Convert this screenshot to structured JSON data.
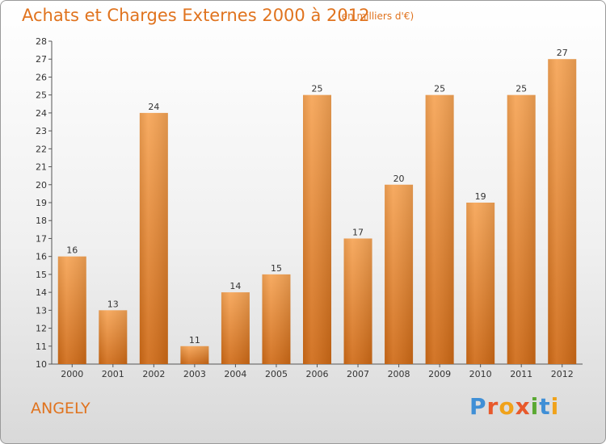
{
  "title": "Achats et Charges Externes 2000 à 2012",
  "unit_note": "(en milliers d'€)",
  "commune": "ANGELY",
  "logo": {
    "letters": [
      "P",
      "r",
      "o",
      "x",
      "i",
      "t",
      "i"
    ],
    "colors": [
      "#3f8fd6",
      "#e8592b",
      "#f0a21a",
      "#e8592b",
      "#5aa832",
      "#3f8fd6",
      "#f0a21a"
    ]
  },
  "colors": {
    "accent": "#e0731e",
    "bar_top": "#f6a455",
    "bar_bottom": "#cf6a16"
  },
  "chart_data": {
    "type": "bar",
    "categories": [
      "2000",
      "2001",
      "2002",
      "2003",
      "2004",
      "2005",
      "2006",
      "2007",
      "2008",
      "2009",
      "2010",
      "2011",
      "2012"
    ],
    "values": [
      16,
      13,
      24,
      11,
      14,
      15,
      25,
      17,
      20,
      25,
      19,
      25,
      27
    ],
    "ylim": [
      10,
      28
    ],
    "yticks": [
      10,
      11,
      12,
      13,
      14,
      15,
      16,
      17,
      18,
      19,
      20,
      21,
      22,
      23,
      24,
      25,
      26,
      27,
      28
    ],
    "grid": false
  }
}
